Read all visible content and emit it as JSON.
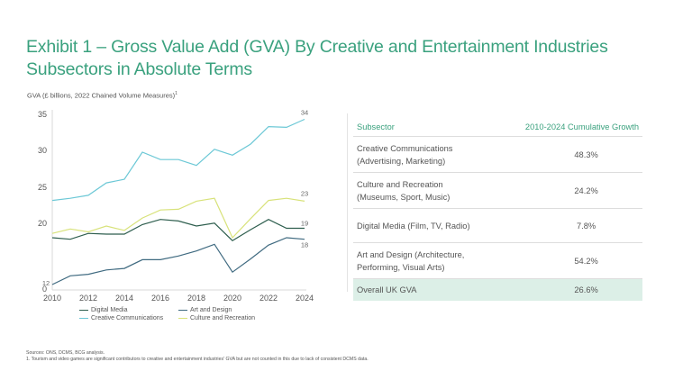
{
  "title": "Exhibit 1 – Gross Value Add (GVA) By Creative and Entertainment Industries Subsectors in Absolute Terms",
  "chart_data": {
    "type": "line",
    "title": "",
    "ylabel": "GVA (£ billions, 2022 Chained Volume Measures)",
    "ylabel_footnote": "1",
    "xlabel": "",
    "x": [
      2010,
      2011,
      2012,
      2013,
      2014,
      2015,
      2016,
      2017,
      2018,
      2019,
      2020,
      2021,
      2022,
      2023,
      2024
    ],
    "x_tick_labels": [
      "2010",
      "2012",
      "2014",
      "2016",
      "2018",
      "2020",
      "2022",
      "2024"
    ],
    "y_tick_labels": [
      "35",
      "30",
      "25",
      "20",
      "0"
    ],
    "ylim": [
      0,
      35
    ],
    "y_axis_break": true,
    "grid": false,
    "legend_position": "bottom",
    "series": [
      {
        "name": "Digital Media",
        "color": "#2e5e4e",
        "values": [
          18.0,
          17.8,
          18.6,
          18.5,
          18.5,
          19.8,
          20.5,
          20.3,
          19.6,
          20.0,
          17.6,
          19.1,
          20.5,
          19.3,
          19.3
        ],
        "end_label": "19"
      },
      {
        "name": "Art and Design",
        "color": "#3f6a80",
        "values": [
          11.6,
          12.8,
          13.0,
          13.6,
          13.8,
          15.0,
          15.0,
          15.5,
          16.2,
          17.1,
          13.3,
          15.1,
          17.0,
          18.0,
          17.8
        ],
        "start_label": "12",
        "end_label": "18"
      },
      {
        "name": "Creative Communications",
        "color": "#6cc8d6",
        "values": [
          23.1,
          23.4,
          23.8,
          25.5,
          26.0,
          29.7,
          28.7,
          28.7,
          27.9,
          30.1,
          29.3,
          30.8,
          33.2,
          33.1,
          34.2
        ],
        "end_label": "34"
      },
      {
        "name": "Culture and Recreation",
        "color": "#d8e27a",
        "values": [
          18.6,
          19.2,
          18.8,
          19.6,
          19.0,
          20.7,
          21.8,
          21.9,
          23.0,
          23.4,
          18.0,
          20.6,
          23.1,
          23.4,
          23.0
        ],
        "end_label": "23"
      }
    ]
  },
  "table": {
    "headers": [
      "Subsector",
      "2010-2024 Cumulative Growth"
    ],
    "rows": [
      {
        "subsector_line1": "Creative Communications",
        "subsector_line2": "(Advertising, Marketing)",
        "growth": "48.3%"
      },
      {
        "subsector_line1": "Culture and Recreation",
        "subsector_line2": "(Museums, Sport, Music)",
        "growth": "24.2%"
      },
      {
        "subsector_line1": "Digital Media (Film, TV, Radio)",
        "subsector_line2": "",
        "growth": "7.8%"
      },
      {
        "subsector_line1": "Art and Design (Architecture,",
        "subsector_line2": "Performing, Visual Arts)",
        "growth": "54.2%"
      }
    ],
    "total": {
      "label": "Overall UK GVA",
      "growth": "26.6%",
      "highlight_color": "#dcefe7"
    }
  },
  "footnotes": {
    "sources": "Sources: ONS, DCMS, BCG analysis.",
    "note1": "1. Tourism and video games are significant contributors to creative and entertainment industries' GVA but are not counted in this due to lack of consistent DCMS data."
  }
}
